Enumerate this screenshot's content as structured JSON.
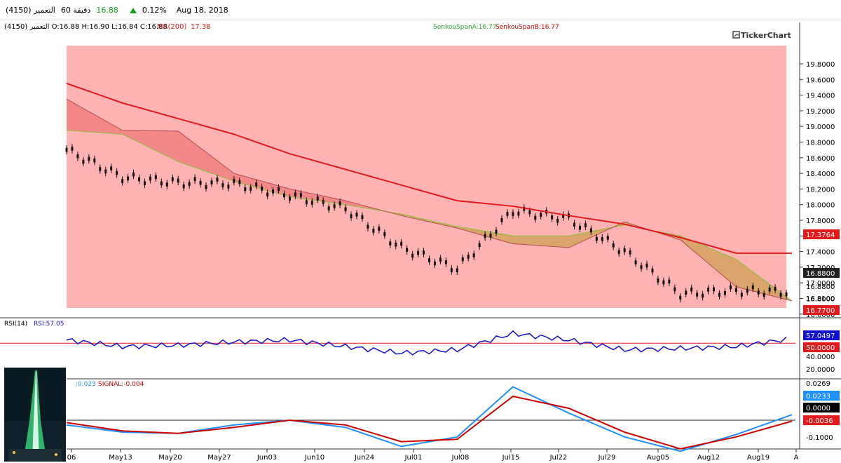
{
  "header": {
    "symbol": "التعمير (4150)",
    "interval": "60 دقيقة",
    "price": "16.88",
    "change_pct": "0.12%",
    "date": "Aug 18, 2018",
    "icons": {
      "change_direction": "triangle-up-icon",
      "logo": "tickerchart-logo-icon"
    }
  },
  "colors": {
    "ma": "#e31a1c",
    "cloud_bear": "#f08080",
    "cloud_bull": "#d4a15f",
    "background_region": "#ffb3b3",
    "rsi_line": "#1010d0",
    "macd_line": "#1e90ff",
    "signal_line": "#cc0000",
    "span_a": "#2ca02c",
    "span_b": "#cc0000"
  },
  "main_panel": {
    "ohlc": "التعمير (4150) O:16.88 H:16.90 L:16.84 C:16.88",
    "ma_label": "MA(200)",
    "ma_value": "17.38",
    "senkou_a": "SenkouSpanA:16.77",
    "senkou_b": "SenkouSpanB:16.77",
    "logo": "TickerChart",
    "price_ticks": [
      "19.8000",
      "19.6000",
      "19.4000",
      "19.2000",
      "19.0000",
      "18.8000",
      "18.6000",
      "18.4000",
      "18.2000",
      "18.0000",
      "17.8000",
      "17.6000",
      "17.4000",
      "17.2000",
      "17.0000",
      "16.8000",
      "16.6000"
    ],
    "badges": {
      "ma": "17.3764",
      "close": "16.8800",
      "close2": "16.8800",
      "low": "16.8100",
      "cloud": "16.7700"
    }
  },
  "rsi_panel": {
    "label": "RSI(14)",
    "value_label": "RSI:57.05",
    "ticks": [
      "40.0000",
      "20.0000"
    ],
    "badges": {
      "rsi": "57.0497",
      "level": "50.0000"
    }
  },
  "macd_panel": {
    "macd_label": ":0.023",
    "signal_label": "SIGNAL:-0.004",
    "ticks": [
      "0.0269",
      "-0.1000"
    ],
    "badges": {
      "macd": "0.0233",
      "zero": "0.0000",
      "signal": "-0.0036"
    }
  },
  "x_axis": {
    "labels": [
      "06",
      "May13",
      "May20",
      "May27",
      "Jun03",
      "Jun10",
      "Jun24",
      "Jul01",
      "Jul08",
      "Jul15",
      "Jul22",
      "Jul29",
      "Aug05",
      "Aug12",
      "Aug19",
      "A"
    ]
  },
  "chart_data": [
    {
      "type": "line",
      "title": "التعمير (4150)",
      "x": [
        "May13",
        "May20",
        "May27",
        "Jun03",
        "Jun10",
        "Jun24",
        "Jul01",
        "Jul08",
        "Jul15",
        "Jul22",
        "Jul29",
        "Aug05",
        "Aug12",
        "Aug19"
      ],
      "series": [
        {
          "name": "التعمير (4150)",
          "values": [
            18.7,
            18.35,
            18.28,
            18.27,
            18.12,
            17.95,
            17.45,
            17.18,
            17.92,
            17.82,
            17.4,
            16.86,
            16.9,
            16.88
          ]
        },
        {
          "name": "MA(200)",
          "values": [
            19.55,
            19.3,
            19.1,
            18.9,
            18.65,
            18.45,
            18.25,
            18.05,
            17.98,
            17.86,
            17.75,
            17.58,
            17.38,
            17.38
          ]
        },
        {
          "name": "SenkouSpanA",
          "values": [
            18.95,
            18.9,
            18.55,
            18.3,
            18.1,
            18.0,
            17.88,
            17.72,
            17.6,
            17.6,
            17.74,
            17.6,
            17.3,
            16.77
          ]
        },
        {
          "name": "SenkouSpanB",
          "values": [
            19.35,
            18.95,
            18.94,
            18.4,
            18.2,
            18.05,
            17.86,
            17.7,
            17.5,
            17.45,
            17.78,
            17.55,
            16.95,
            16.77
          ]
        }
      ],
      "ylim": [
        16.6,
        19.9
      ]
    },
    {
      "type": "line",
      "title": "RSI(14)",
      "x": [
        "May13",
        "May20",
        "May27",
        "Jun03",
        "Jun10",
        "Jun24",
        "Jul01",
        "Jul08",
        "Jul15",
        "Jul22",
        "Jul29",
        "Aug05",
        "Aug12",
        "Aug19"
      ],
      "series": [
        {
          "name": "RSI",
          "values": [
            55,
            45,
            47,
            52,
            55,
            45,
            35,
            40,
            65,
            55,
            40,
            42,
            45,
            57.05
          ]
        }
      ],
      "reference": 50,
      "ylim": [
        10,
        70
      ]
    },
    {
      "type": "line",
      "title": "MACD",
      "x": [
        "May13",
        "May20",
        "May27",
        "Jun03",
        "Jun10",
        "Jun24",
        "Jul01",
        "Jul08",
        "Jul15",
        "Jul22",
        "Jul29",
        "Aug05",
        "Aug12",
        "Aug19"
      ],
      "series": [
        {
          "name": "MACD",
          "values": [
            -0.02,
            -0.05,
            -0.055,
            -0.02,
            0.0,
            -0.03,
            -0.11,
            -0.07,
            0.14,
            0.03,
            -0.07,
            -0.13,
            -0.06,
            0.023
          ]
        },
        {
          "name": "SIGNAL",
          "values": [
            -0.01,
            -0.045,
            -0.055,
            -0.03,
            0.0,
            -0.02,
            -0.09,
            -0.08,
            0.1,
            0.05,
            -0.05,
            -0.12,
            -0.07,
            -0.004
          ]
        }
      ],
      "reference": 0,
      "ylim": [
        -0.15,
        0.05
      ]
    }
  ]
}
